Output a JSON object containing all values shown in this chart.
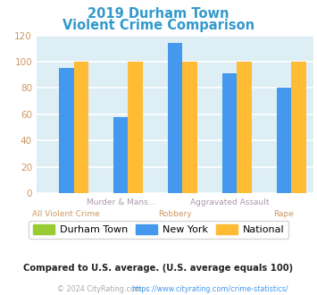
{
  "title_line1": "2019 Durham Town",
  "title_line2": "Violent Crime Comparison",
  "title_color": "#3399cc",
  "durham_town": [
    0,
    0,
    0,
    0,
    0
  ],
  "new_york": [
    95,
    58,
    114,
    91,
    80
  ],
  "national": [
    100,
    100,
    100,
    100,
    100
  ],
  "durham_color": "#99cc33",
  "newyork_color": "#4499ee",
  "national_color": "#ffbb33",
  "ylim": [
    0,
    120
  ],
  "yticks": [
    0,
    20,
    40,
    60,
    80,
    100,
    120
  ],
  "plot_bg": "#ddeef5",
  "grid_color": "#ffffff",
  "top_labels": [
    "",
    "Murder & Mans...",
    "",
    "Aggravated Assault",
    ""
  ],
  "bottom_labels": [
    "All Violent Crime",
    "",
    "Robbery",
    "",
    "Rape"
  ],
  "top_label_color": "#aa99aa",
  "bottom_label_color": "#cc9966",
  "legend_labels": [
    "Durham Town",
    "New York",
    "National"
  ],
  "footnote1": "Compared to U.S. average. (U.S. average equals 100)",
  "footnote2_gray": "© 2024 CityRating.com - ",
  "footnote2_link": "https://www.cityrating.com/crime-statistics/",
  "footnote1_color": "#222222",
  "footnote2_color": "#aaaaaa",
  "footnote2_link_color": "#4499ee",
  "ytick_color": "#cc9966"
}
